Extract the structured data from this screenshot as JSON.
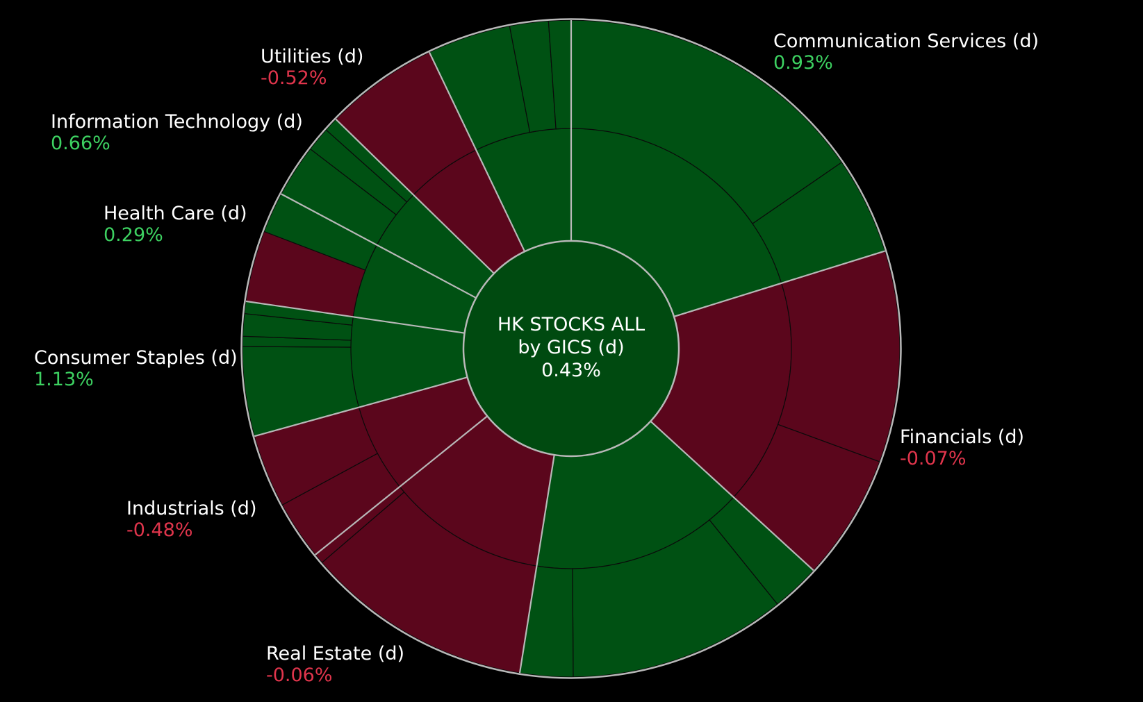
{
  "chart_data": {
    "type": "sunburst",
    "title_lines": [
      "HK STOCKS ALL",
      "by GICS (d)",
      "0.43%"
    ],
    "root_change": 0.43,
    "colors": {
      "positive": "#005113",
      "positive_dark": "#004a10",
      "negative": "#5b061c",
      "label_positive": "#3dd161",
      "label_negative": "#e0354c",
      "ring_border": "#b8b8b8"
    },
    "sectors": [
      {
        "name": "Communication Services (d)",
        "change_label": "0.93%",
        "change": 0.93,
        "weight": 20.2,
        "children": [
          {
            "weight": 15.4,
            "sign": 1
          },
          {
            "weight": 4.8,
            "sign": 1
          }
        ]
      },
      {
        "name": "Financials (d)",
        "change_label": "-0.07%",
        "change": -0.07,
        "weight": 16.6,
        "children": [
          {
            "weight": 10.4,
            "sign": -1
          },
          {
            "weight": 6.2,
            "sign": -1
          },
          {
            "weight": 0.0,
            "sign": 1
          }
        ]
      },
      {
        "name": "",
        "change_label": "",
        "change": 0.2,
        "weight": 15.7,
        "children": [
          {
            "weight": 2.4,
            "sign": 1
          },
          {
            "weight": 10.7,
            "sign": 1
          },
          {
            "weight": 2.6,
            "sign": 1
          }
        ]
      },
      {
        "name": "Real Estate (d)",
        "change_label": "-0.06%",
        "change": -0.06,
        "weight": 11.7,
        "children": [
          {
            "weight": 11.2,
            "sign": -1
          },
          {
            "weight": 0.5,
            "sign": -1
          }
        ]
      },
      {
        "name": "Industrials (d)",
        "change_label": "-0.48%",
        "change": -0.48,
        "weight": 6.5,
        "children": [
          {
            "weight": 2.9,
            "sign": -1
          },
          {
            "weight": 3.6,
            "sign": -1
          }
        ]
      },
      {
        "name": "Consumer Staples (d)",
        "change_label": "1.13%",
        "change": 1.13,
        "weight": 6.6,
        "children": [
          {
            "weight": 4.4,
            "sign": 1
          },
          {
            "weight": 0.5,
            "sign": 1
          },
          {
            "weight": 1.1,
            "sign": 1
          },
          {
            "weight": 0.6,
            "sign": 1
          }
        ]
      },
      {
        "name": "Health Care (d)",
        "change_label": "0.29%",
        "change": 0.29,
        "weight": 5.5,
        "children": [
          {
            "weight": 3.5,
            "sign": -1
          },
          {
            "weight": 2.0,
            "sign": 1
          }
        ]
      },
      {
        "name": "Information Technology (d)",
        "change_label": "0.66%",
        "change": 0.66,
        "weight": 4.5,
        "children": [
          {
            "weight": 2.6,
            "sign": 1
          },
          {
            "weight": 1.2,
            "sign": 1
          },
          {
            "weight": 0.7,
            "sign": 1
          }
        ]
      },
      {
        "name": "Utilities (d)",
        "change_label": "-0.52%",
        "change": -0.52,
        "weight": 5.6,
        "children": [
          {
            "weight": 5.6,
            "sign": -1
          }
        ]
      },
      {
        "name": "",
        "change_label": "",
        "change": 0.3,
        "weight": 7.1,
        "children": [
          {
            "weight": 4.1,
            "sign": 1
          },
          {
            "weight": 1.9,
            "sign": 1
          },
          {
            "weight": 1.1,
            "sign": 1
          }
        ]
      }
    ]
  },
  "labels": [
    {
      "sector": 0,
      "name": "Communication Services (d)",
      "change": "0.93%",
      "positive": true
    },
    {
      "sector": 1,
      "name": "Financials (d)",
      "change": "-0.07%",
      "positive": false
    },
    {
      "sector": 3,
      "name": "Real Estate (d)",
      "change": "-0.06%",
      "positive": false
    },
    {
      "sector": 4,
      "name": "Industrials (d)",
      "change": "-0.48%",
      "positive": false
    },
    {
      "sector": 5,
      "name": "Consumer Staples (d)",
      "change": "1.13%",
      "positive": true
    },
    {
      "sector": 6,
      "name": "Health Care (d)",
      "change": "0.29%",
      "positive": true
    },
    {
      "sector": 7,
      "name": "Information Technology (d)",
      "change": "0.66%",
      "positive": true
    },
    {
      "sector": 8,
      "name": "Utilities (d)",
      "change": "-0.52%",
      "positive": false
    }
  ]
}
